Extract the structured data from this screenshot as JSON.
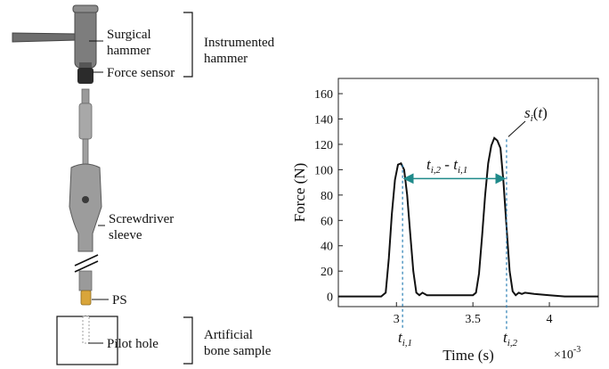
{
  "labels": {
    "surgical_hammer_l1": "Surgical",
    "surgical_hammer_l2": "hammer",
    "force_sensor": "Force sensor",
    "instrumented_l1": "Instrumented",
    "instrumented_l2": "hammer",
    "screwdriver_l1": "Screwdriver",
    "screwdriver_l2": "sleeve",
    "ps": "PS",
    "pilot_hole": "Pilot hole",
    "artificial_l1": "Artificial",
    "artificial_l2": "bone sample"
  },
  "annotations": {
    "peak_label": "s_i(t)",
    "interval_label": "t_{i,2} - t_{i,1}",
    "t1_label": "t_{i,1}",
    "t2_label": "t_{i,2}"
  },
  "colors": {
    "accent": "#1f8a8a",
    "marker": "#2a7fb5",
    "ps_gold": "#d9a53a"
  },
  "chart_data": {
    "type": "line",
    "xlabel": "Time (s)",
    "ylabel": "Force (N)",
    "x_multiplier": "×10",
    "x_multiplier_exp": "-3",
    "xlim": [
      2.62,
      4.32
    ],
    "ylim": [
      -8,
      172
    ],
    "xticks": [
      3,
      3.5,
      4
    ],
    "xtick_labels": [
      "3",
      "3.5",
      "4"
    ],
    "yticks": [
      0,
      20,
      40,
      60,
      80,
      100,
      120,
      140,
      160
    ],
    "ytick_labels": [
      "0",
      "20",
      "40",
      "60",
      "80",
      "100",
      "120",
      "140",
      "160"
    ],
    "grid": false,
    "series": [
      {
        "x": [
          2.62,
          2.9,
          2.93,
          2.95,
          2.97,
          2.99,
          3.01,
          3.03,
          3.05,
          3.07,
          3.09,
          3.11,
          3.13,
          3.15,
          3.17,
          3.2,
          3.3,
          3.4,
          3.5,
          3.52,
          3.54,
          3.56,
          3.58,
          3.6,
          3.62,
          3.64,
          3.66,
          3.68,
          3.7,
          3.72,
          3.74,
          3.76,
          3.78,
          3.8,
          3.82,
          3.84,
          3.9,
          4.0,
          4.1,
          4.2,
          4.32
        ],
        "y": [
          0,
          0,
          3,
          30,
          65,
          92,
          104,
          105,
          100,
          80,
          50,
          20,
          3,
          1,
          3,
          1,
          1,
          1,
          1,
          3,
          18,
          48,
          80,
          105,
          119,
          125,
          123,
          117,
          90,
          55,
          20,
          4,
          1,
          3,
          2,
          3,
          2,
          1,
          0,
          0,
          0
        ]
      }
    ],
    "peak_times": [
      3.04,
      3.72
    ],
    "interval_y": 93
  }
}
